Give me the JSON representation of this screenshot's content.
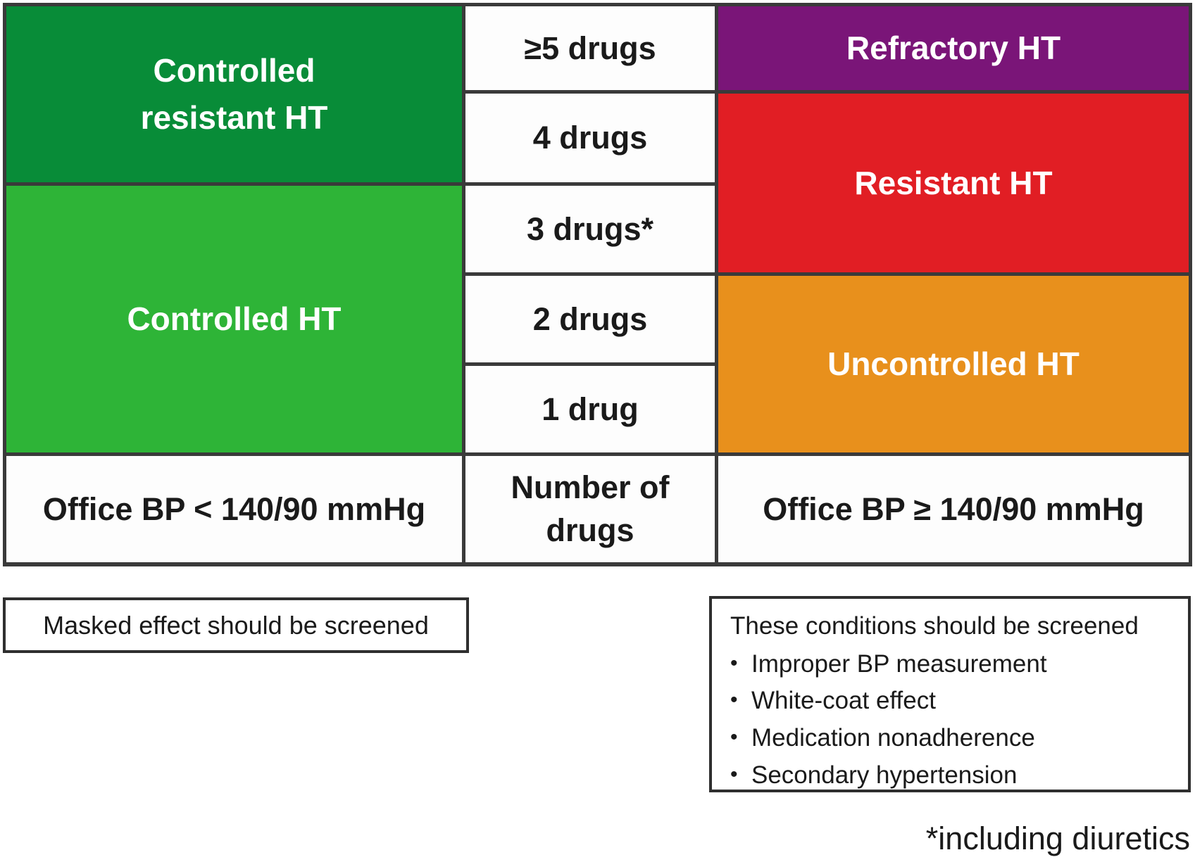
{
  "colors": {
    "grid_line": "#3a3a3a",
    "dark_green": "#088c38",
    "light_green": "#2eb437",
    "purple": "#7a1578",
    "red": "#e11e24",
    "orange": "#e8901c",
    "white_cell": "#fdfdfd"
  },
  "table": {
    "left_column": {
      "controlled_resistant_line1": "Controlled",
      "controlled_resistant_line2": "resistant HT",
      "controlled": "Controlled HT",
      "office_bp": "Office BP < 140/90 mmHg"
    },
    "middle_column": {
      "rows": [
        "≥5 drugs",
        "4 drugs",
        "3 drugs*",
        "2 drugs",
        "1 drug"
      ],
      "footer_line1": "Number of",
      "footer_line2": "drugs"
    },
    "right_column": {
      "refractory": "Refractory HT",
      "resistant": "Resistant HT",
      "uncontrolled": "Uncontrolled HT",
      "office_bp": "Office BP ≥ 140/90 mmHg"
    }
  },
  "notes": {
    "masked_box": "Masked effect should be screened",
    "conditions_title": "These conditions should be screened",
    "bullet_char": "•",
    "conditions_items": [
      "Improper BP measurement",
      "White-coat effect",
      "Medication nonadherence",
      "Secondary hypertension"
    ],
    "footnote": "*including diuretics"
  }
}
